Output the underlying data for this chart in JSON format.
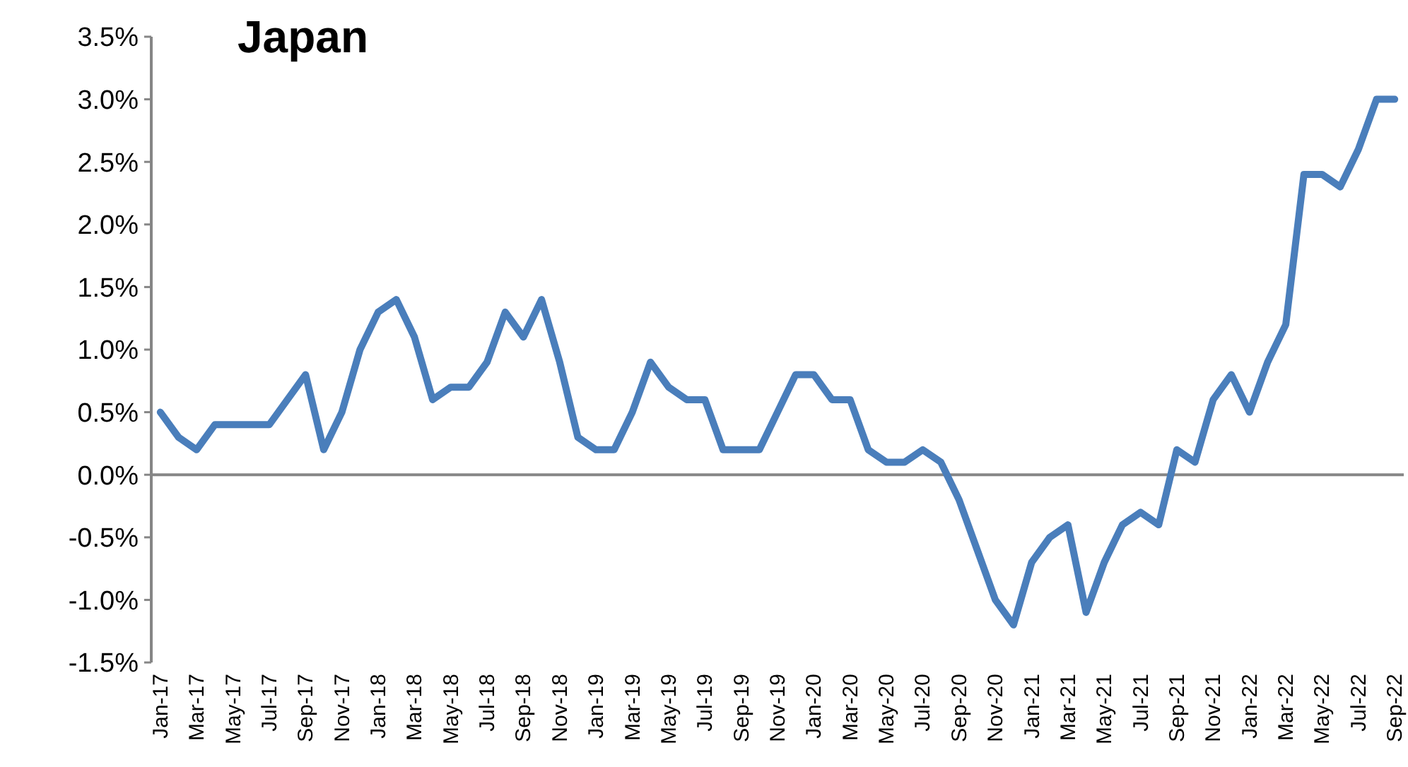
{
  "chart_data": {
    "type": "line",
    "title": "Japan",
    "categories": [
      "Jan-17",
      null,
      "Mar-17",
      null,
      "May-17",
      null,
      "Jul-17",
      null,
      "Sep-17",
      null,
      "Nov-17",
      null,
      "Jan-18",
      null,
      "Mar-18",
      null,
      "May-18",
      null,
      "Jul-18",
      null,
      "Sep-18",
      null,
      "Nov-18",
      null,
      "Jan-19",
      null,
      "Mar-19",
      null,
      "May-19",
      null,
      "Jul-19",
      null,
      "Sep-19",
      null,
      "Nov-19",
      null,
      "Jan-20",
      null,
      "Mar-20",
      null,
      "May-20",
      null,
      "Jul-20",
      null,
      "Sep-20",
      null,
      "Nov-20",
      null,
      "Jan-21",
      null,
      "Mar-21",
      null,
      "May-21",
      null,
      "Jul-21",
      null,
      "Sep-21",
      null,
      "Nov-21",
      null,
      "Jan-22",
      null,
      "Mar-22",
      null,
      "May-22",
      null,
      "Jul-22",
      null,
      "Sep-22"
    ],
    "series": [
      {
        "color": "#4a7ebb",
        "values": [
          0.5,
          0.3,
          0.2,
          0.4,
          0.4,
          0.4,
          0.4,
          0.6,
          0.8,
          0.2,
          0.5,
          1.0,
          1.3,
          1.4,
          1.1,
          0.6,
          0.7,
          0.7,
          0.9,
          1.3,
          1.1,
          1.4,
          0.9,
          0.3,
          0.2,
          0.2,
          0.5,
          0.9,
          0.7,
          0.6,
          0.6,
          0.2,
          0.2,
          0.2,
          0.5,
          0.8,
          0.8,
          0.6,
          0.6,
          0.2,
          0.1,
          0.1,
          0.2,
          0.1,
          -0.2,
          -0.6,
          -1.0,
          -1.2,
          -0.7,
          -0.5,
          -0.4,
          -1.1,
          -0.7,
          -0.4,
          -0.3,
          -0.4,
          0.2,
          0.1,
          0.6,
          0.8,
          0.5,
          0.9,
          1.2,
          2.4,
          2.4,
          2.3,
          2.6,
          3.0,
          3.0
        ]
      }
    ],
    "ylim": [
      -1.5,
      3.5
    ],
    "yticks": [
      {
        "value": -1.5,
        "label": "-1.5%"
      },
      {
        "value": -1.0,
        "label": "-1.0%"
      },
      {
        "value": -0.5,
        "label": "-0.5%"
      },
      {
        "value": 0,
        "label": "0.0%"
      },
      {
        "value": 0.5,
        "label": "0.5%"
      },
      {
        "value": 1.0,
        "label": "1.0%"
      },
      {
        "value": 1.5,
        "label": "1.5%"
      },
      {
        "value": 2.0,
        "label": "2.0%"
      },
      {
        "value": 2.5,
        "label": "2.5%"
      },
      {
        "value": 3.0,
        "label": "3.0%"
      },
      {
        "value": 3.5,
        "label": "3.5%"
      }
    ],
    "marker": "none",
    "line_style": "solid"
  }
}
